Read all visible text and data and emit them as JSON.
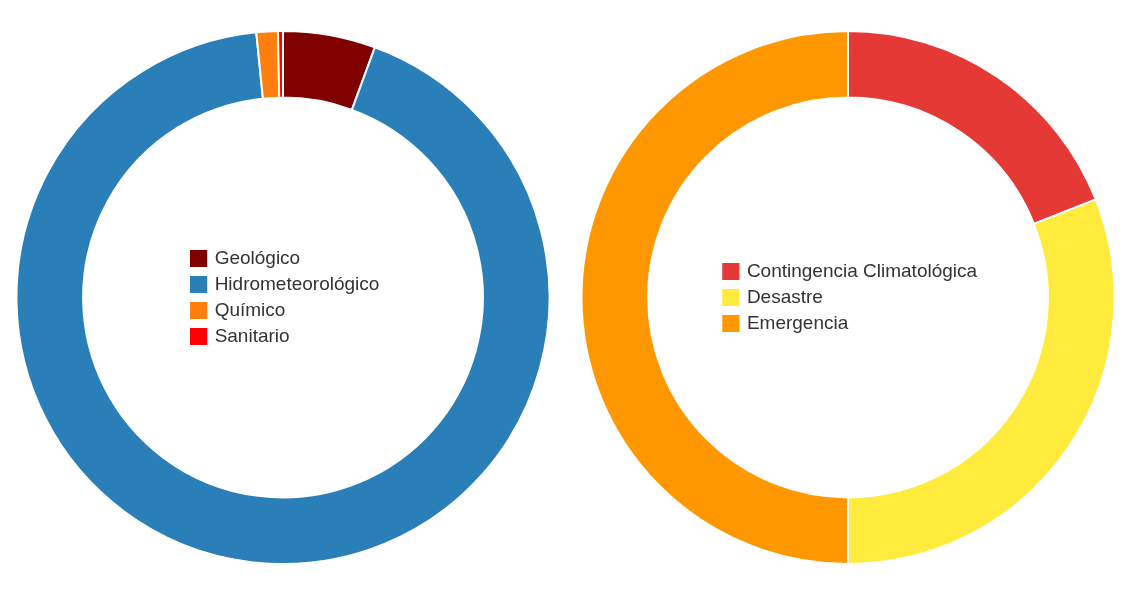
{
  "chart_data": [
    {
      "type": "donut",
      "categories": [
        "Geológico",
        "Hidrometeorológico",
        "Químico",
        "Sanitario"
      ],
      "values": [
        5.6,
        92.8,
        1.3,
        0.3
      ],
      "colors": [
        "#800000",
        "#2a7fb8",
        "#ff7f0e",
        "#ff0000"
      ],
      "legend": "center"
    },
    {
      "type": "donut",
      "categories": [
        "Contingencia Climatológica",
        "Desastre",
        "Emergencia"
      ],
      "values": [
        19,
        31,
        50
      ],
      "colors": [
        "#e53935",
        "#ffeb3b",
        "#ff9800"
      ],
      "legend": "center"
    }
  ]
}
